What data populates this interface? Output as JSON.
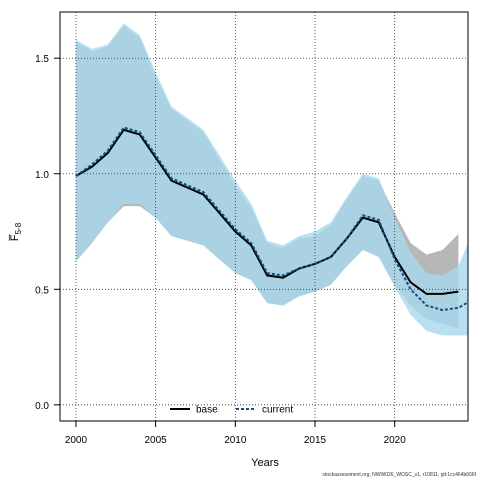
{
  "chart_data": {
    "type": "line",
    "xlabel": "Years",
    "ylabel": "F̅",
    "ylabel_subscript": "5-8",
    "xlim": [
      1999,
      2024.6
    ],
    "ylim": [
      -0.07,
      1.7
    ],
    "x_ticks": [
      2000,
      2005,
      2010,
      2015,
      2020
    ],
    "y_ticks": [
      0.0,
      0.5,
      1.0,
      1.5
    ],
    "y_tick_labels": [
      "0.0",
      "0.5",
      "1.0",
      "1.5"
    ],
    "grid": true,
    "legend_position": "bottom-center",
    "series": [
      {
        "name": "base",
        "color": "#000000",
        "band_color": "#b3b3b3",
        "x": [
          2000,
          2001,
          2002,
          2003,
          2004,
          2005,
          2006,
          2007,
          2008,
          2009,
          2010,
          2011,
          2012,
          2013,
          2014,
          2015,
          2016,
          2017,
          2018,
          2019,
          2020,
          2021,
          2022,
          2023,
          2024
        ],
        "values": [
          0.99,
          1.03,
          1.09,
          1.19,
          1.17,
          1.07,
          0.97,
          0.94,
          0.91,
          0.83,
          0.75,
          0.69,
          0.56,
          0.55,
          0.59,
          0.61,
          0.64,
          0.72,
          0.81,
          0.79,
          0.64,
          0.53,
          0.48,
          0.48,
          0.49
        ],
        "lower": [
          0.62,
          0.7,
          0.79,
          0.86,
          0.86,
          0.81,
          0.73,
          0.71,
          0.69,
          0.63,
          0.57,
          0.54,
          0.44,
          0.43,
          0.47,
          0.49,
          0.52,
          0.6,
          0.67,
          0.64,
          0.52,
          0.43,
          0.37,
          0.35,
          0.33
        ],
        "upper": [
          1.57,
          1.53,
          1.55,
          1.64,
          1.59,
          1.42,
          1.28,
          1.23,
          1.18,
          1.06,
          0.95,
          0.85,
          0.7,
          0.68,
          0.72,
          0.73,
          0.78,
          0.89,
          0.99,
          0.97,
          0.83,
          0.7,
          0.65,
          0.67,
          0.74
        ]
      },
      {
        "name": "current",
        "color": "#1a4a80",
        "band_color": "#a6d8ee",
        "x": [
          2000,
          2001,
          2002,
          2003,
          2004,
          2005,
          2006,
          2007,
          2008,
          2009,
          2010,
          2011,
          2012,
          2013,
          2014,
          2015,
          2016,
          2017,
          2018,
          2019,
          2020,
          2021,
          2022,
          2023,
          2024,
          2025
        ],
        "values": [
          0.99,
          1.04,
          1.1,
          1.2,
          1.18,
          1.08,
          0.98,
          0.95,
          0.92,
          0.84,
          0.76,
          0.7,
          0.57,
          0.56,
          0.59,
          0.61,
          0.64,
          0.72,
          0.82,
          0.8,
          0.63,
          0.5,
          0.43,
          0.41,
          0.42,
          0.46
        ],
        "lower": [
          0.62,
          0.7,
          0.79,
          0.87,
          0.87,
          0.81,
          0.73,
          0.71,
          0.69,
          0.63,
          0.57,
          0.54,
          0.44,
          0.43,
          0.47,
          0.49,
          0.52,
          0.6,
          0.67,
          0.64,
          0.51,
          0.39,
          0.32,
          0.3,
          0.3,
          0.3
        ],
        "upper": [
          1.58,
          1.54,
          1.56,
          1.65,
          1.6,
          1.44,
          1.29,
          1.24,
          1.19,
          1.08,
          0.97,
          0.87,
          0.71,
          0.69,
          0.73,
          0.75,
          0.79,
          0.9,
          1.0,
          0.98,
          0.81,
          0.66,
          0.57,
          0.56,
          0.6,
          0.7
        ]
      }
    ]
  },
  "footnote": "stockassessment.org, NWW026_WOSC_v1, r10811, git:1cc464b606f"
}
